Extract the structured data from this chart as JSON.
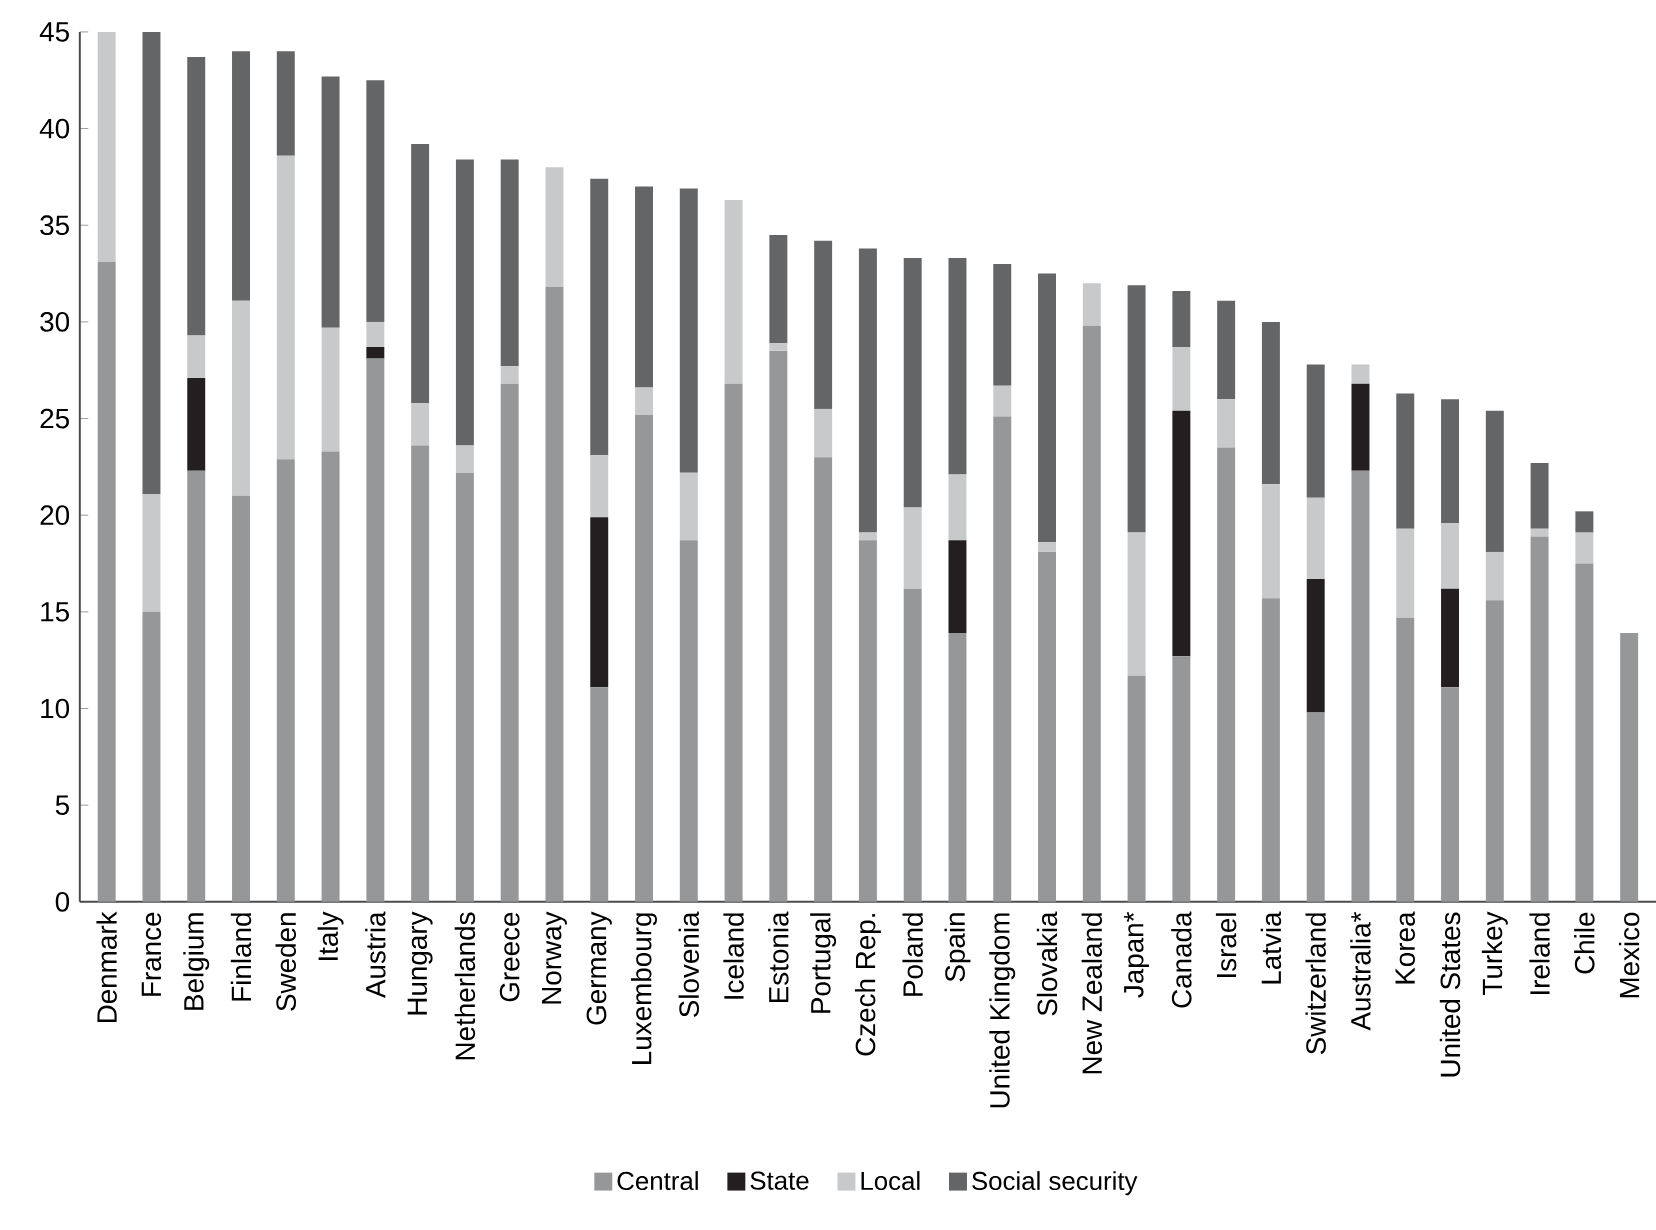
{
  "chart_data": {
    "type": "bar",
    "stacked": true,
    "categories": [
      "Denmark",
      "France",
      "Belgium",
      "Finland",
      "Sweden",
      "Italy",
      "Austria",
      "Hungary",
      "Netherlands",
      "Greece",
      "Norway",
      "Germany",
      "Luxembourg",
      "Slovenia",
      "Iceland",
      "Estonia",
      "Portugal",
      "Czech Rep.",
      "Poland",
      "Spain",
      "United Kingdom",
      "Slovakia",
      "New Zealand",
      "Japan*",
      "Canada",
      "Israel",
      "Latvia",
      "Switzerland",
      "Australia*",
      "Korea",
      "United States",
      "Turkey",
      "Ireland",
      "Chile",
      "Mexico"
    ],
    "series": [
      {
        "name": "Central",
        "color": "#969799",
        "values": [
          33.1,
          15.0,
          22.3,
          21.0,
          22.9,
          23.3,
          28.1,
          23.6,
          22.2,
          26.8,
          31.8,
          11.1,
          25.2,
          18.7,
          26.8,
          28.5,
          23.0,
          18.7,
          16.2,
          13.9,
          25.1,
          18.1,
          29.8,
          11.7,
          12.7,
          23.5,
          15.7,
          9.8,
          22.3,
          14.7,
          11.1,
          15.6,
          18.9,
          17.5,
          13.9
        ]
      },
      {
        "name": "State",
        "color": "#231f20",
        "values": [
          null,
          null,
          4.8,
          null,
          null,
          null,
          0.6,
          null,
          null,
          null,
          null,
          8.8,
          null,
          null,
          null,
          null,
          null,
          null,
          null,
          4.8,
          null,
          null,
          null,
          null,
          12.7,
          null,
          null,
          6.9,
          4.5,
          null,
          5.1,
          null,
          null,
          null,
          null
        ]
      },
      {
        "name": "Local",
        "color": "#c8c9cb",
        "values": [
          11.9,
          6.1,
          2.2,
          10.1,
          15.7,
          6.4,
          1.3,
          2.2,
          1.4,
          0.9,
          6.2,
          3.2,
          1.4,
          3.5,
          9.5,
          0.4,
          2.5,
          0.4,
          4.2,
          3.4,
          1.6,
          0.5,
          2.2,
          7.4,
          3.3,
          2.5,
          5.9,
          4.2,
          1.0,
          4.6,
          3.4,
          2.5,
          0.4,
          1.6,
          null
        ]
      },
      {
        "name": "Social security",
        "color": "#646566",
        "values": [
          null,
          23.9,
          14.4,
          12.9,
          5.4,
          13.0,
          12.5,
          13.4,
          14.8,
          10.7,
          null,
          14.3,
          10.4,
          14.7,
          null,
          5.6,
          8.7,
          14.7,
          12.9,
          11.2,
          6.3,
          13.9,
          null,
          12.8,
          2.9,
          5.1,
          8.4,
          6.9,
          null,
          7.0,
          6.4,
          7.3,
          3.4,
          1.1,
          null
        ]
      }
    ],
    "ylim": [
      0,
      45
    ],
    "yticks": [
      0,
      5,
      10,
      15,
      20,
      25,
      30,
      35,
      40,
      45
    ],
    "grid": false,
    "legend": "bottom"
  }
}
